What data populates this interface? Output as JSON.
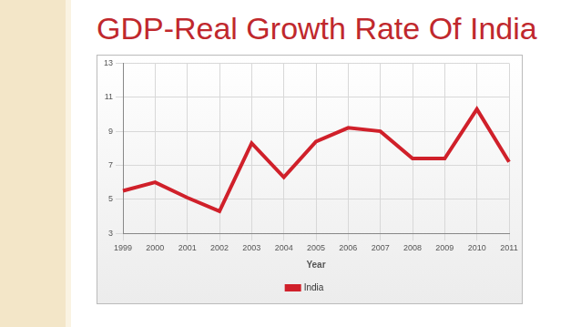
{
  "chart_data": {
    "type": "line",
    "title": "GDP-Real Growth Rate Of India",
    "xlabel": "Year",
    "categories": [
      "1999",
      "2000",
      "2001",
      "2002",
      "2003",
      "2004",
      "2005",
      "2006",
      "2007",
      "2008",
      "2009",
      "2010",
      "2011"
    ],
    "series": [
      {
        "name": "India",
        "color": "#d0202a",
        "values": [
          5.5,
          6.0,
          5.1,
          4.3,
          8.3,
          6.3,
          8.4,
          9.2,
          9.0,
          7.4,
          7.4,
          10.3,
          7.2
        ]
      }
    ],
    "ylim": [
      3,
      13
    ],
    "yticks": [
      3,
      5,
      7,
      9,
      11,
      13
    ],
    "grid": true,
    "legend": "bottom"
  }
}
